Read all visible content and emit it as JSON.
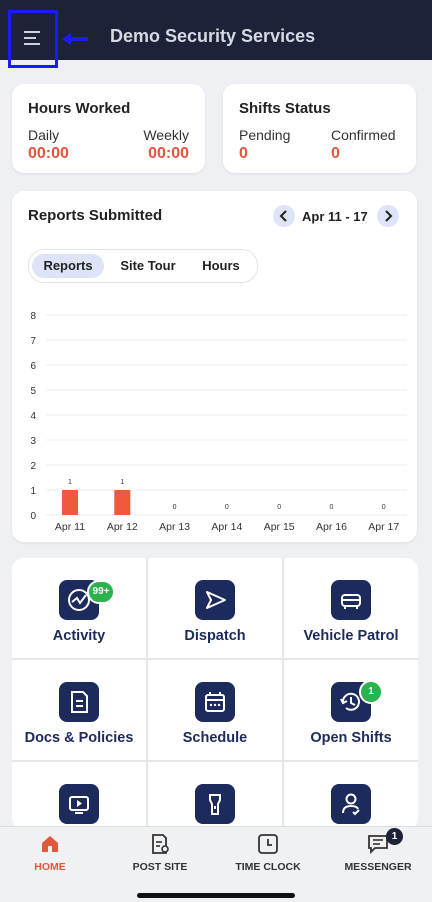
{
  "header": {
    "title": "Demo Security Services",
    "menu_icon": "hamburger-icon"
  },
  "hours": {
    "title": "Hours Worked",
    "daily_label": "Daily",
    "daily_value": "00:00",
    "weekly_label": "Weekly",
    "weekly_value": "00:00"
  },
  "shifts": {
    "title": "Shifts Status",
    "pending_label": "Pending",
    "pending_value": "0",
    "confirmed_label": "Confirmed",
    "confirmed_value": "0"
  },
  "reports": {
    "title": "Reports Submitted",
    "date_range": "Apr 11 - 17",
    "tabs": [
      {
        "label": "Reports"
      },
      {
        "label": "Site Tour"
      },
      {
        "label": "Hours"
      }
    ]
  },
  "chart_data": {
    "type": "bar",
    "categories": [
      "Apr 11",
      "Apr 12",
      "Apr 13",
      "Apr 14",
      "Apr 15",
      "Apr 16",
      "Apr 17"
    ],
    "values": [
      1,
      1,
      0,
      0,
      0,
      0,
      0
    ],
    "ylim": [
      0,
      8
    ],
    "yticks": [
      "0",
      "1",
      "2",
      "3",
      "4",
      "5",
      "6",
      "7",
      "8"
    ],
    "bar_color": "#f05a3c",
    "grid": true
  },
  "tiles": [
    {
      "label": "Activity",
      "icon": "activity-icon",
      "badge": "99+"
    },
    {
      "label": "Dispatch",
      "icon": "dispatch-icon"
    },
    {
      "label": "Vehicle Patrol",
      "icon": "car-icon"
    },
    {
      "label": "Docs & Policies",
      "icon": "document-icon"
    },
    {
      "label": "Schedule",
      "icon": "calendar-icon"
    },
    {
      "label": "Open Shifts",
      "icon": "clock-refresh-icon",
      "badge": "1"
    },
    {
      "label": "",
      "icon": "video-icon"
    },
    {
      "label": "",
      "icon": "flashlight-icon"
    },
    {
      "label": "",
      "icon": "user-check-icon"
    }
  ],
  "bottom_nav": [
    {
      "label": "HOME",
      "icon": "home-icon"
    },
    {
      "label": "POST SITE",
      "icon": "post-site-icon"
    },
    {
      "label": "TIME CLOCK",
      "icon": "clock-icon"
    },
    {
      "label": "MESSENGER",
      "icon": "chat-icon",
      "badge": "1"
    }
  ],
  "colors": {
    "header_bg": "#1d2238",
    "accent": "#e5533d",
    "brand_navy": "#1c2a5c",
    "badge_green": "#2bb24c",
    "home_active": "#e2583e"
  }
}
